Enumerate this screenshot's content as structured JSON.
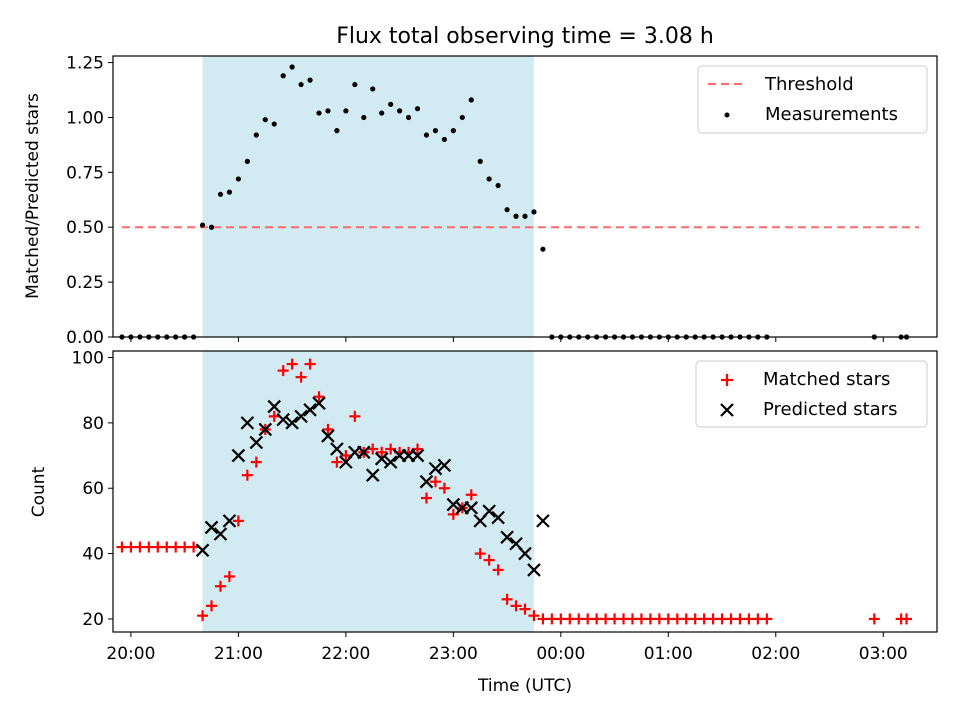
{
  "chart_data": {
    "type": "scatter",
    "title": "Flux total observing time = 3.08 h",
    "xlabel": "Time (UTC)",
    "x_ticks": [
      "20:00",
      "21:00",
      "22:00",
      "23:00",
      "00:00",
      "01:00",
      "02:00",
      "03:00"
    ],
    "x_range": [
      "19:50",
      "03:30"
    ],
    "shaded_interval": {
      "start": "20:40",
      "end": "23:45",
      "color": "#add8e6"
    },
    "panels": [
      {
        "ylabel": "Matched/Predicted stars",
        "ylim": [
          0,
          1.28
        ],
        "y_ticks": [
          "0.00",
          "0.25",
          "0.50",
          "0.75",
          "1.00",
          "1.25"
        ],
        "legend_position": "top-right",
        "series": [
          {
            "name": "Threshold",
            "kind": "dashed-line",
            "color": "#ff6b6b",
            "points": [
              [
                "19:55",
                0.5
              ],
              [
                "03:20",
                0.5
              ]
            ]
          },
          {
            "name": "Measurements",
            "kind": "dots",
            "color": "#000000",
            "points": [
              [
                "19:55",
                0.0
              ],
              [
                "20:00",
                0.0
              ],
              [
                "20:05",
                0.0
              ],
              [
                "20:10",
                0.0
              ],
              [
                "20:15",
                0.0
              ],
              [
                "20:20",
                0.0
              ],
              [
                "20:25",
                0.0
              ],
              [
                "20:30",
                0.0
              ],
              [
                "20:35",
                0.0
              ],
              [
                "20:40",
                0.51
              ],
              [
                "20:45",
                0.5
              ],
              [
                "20:50",
                0.65
              ],
              [
                "20:55",
                0.66
              ],
              [
                "21:00",
                0.72
              ],
              [
                "21:05",
                0.8
              ],
              [
                "21:10",
                0.92
              ],
              [
                "21:15",
                0.99
              ],
              [
                "21:20",
                0.97
              ],
              [
                "21:25",
                1.19
              ],
              [
                "21:30",
                1.23
              ],
              [
                "21:35",
                1.15
              ],
              [
                "21:40",
                1.17
              ],
              [
                "21:45",
                1.02
              ],
              [
                "21:50",
                1.03
              ],
              [
                "21:55",
                0.94
              ],
              [
                "22:00",
                1.03
              ],
              [
                "22:05",
                1.15
              ],
              [
                "22:10",
                1.0
              ],
              [
                "22:15",
                1.13
              ],
              [
                "22:20",
                1.02
              ],
              [
                "22:25",
                1.06
              ],
              [
                "22:30",
                1.03
              ],
              [
                "22:35",
                1.0
              ],
              [
                "22:40",
                1.04
              ],
              [
                "22:45",
                0.92
              ],
              [
                "22:50",
                0.94
              ],
              [
                "22:55",
                0.9
              ],
              [
                "23:00",
                0.94
              ],
              [
                "23:05",
                1.0
              ],
              [
                "23:10",
                1.08
              ],
              [
                "23:15",
                0.8
              ],
              [
                "23:20",
                0.72
              ],
              [
                "23:25",
                0.69
              ],
              [
                "23:30",
                0.58
              ],
              [
                "23:35",
                0.55
              ],
              [
                "23:40",
                0.55
              ],
              [
                "23:45",
                0.57
              ],
              [
                "23:50",
                0.4
              ],
              [
                "23:55",
                0.0
              ],
              [
                "00:00",
                0.0
              ],
              [
                "00:05",
                0.0
              ],
              [
                "00:10",
                0.0
              ],
              [
                "00:15",
                0.0
              ],
              [
                "00:20",
                0.0
              ],
              [
                "00:25",
                0.0
              ],
              [
                "00:30",
                0.0
              ],
              [
                "00:35",
                0.0
              ],
              [
                "00:40",
                0.0
              ],
              [
                "00:45",
                0.0
              ],
              [
                "00:50",
                0.0
              ],
              [
                "00:55",
                0.0
              ],
              [
                "01:00",
                0.0
              ],
              [
                "01:05",
                0.0
              ],
              [
                "01:10",
                0.0
              ],
              [
                "01:15",
                0.0
              ],
              [
                "01:20",
                0.0
              ],
              [
                "01:25",
                0.0
              ],
              [
                "01:30",
                0.0
              ],
              [
                "01:35",
                0.0
              ],
              [
                "01:40",
                0.0
              ],
              [
                "01:45",
                0.0
              ],
              [
                "01:50",
                0.0
              ],
              [
                "01:55",
                0.0
              ],
              [
                "02:55",
                0.0
              ],
              [
                "03:10",
                0.0
              ],
              [
                "03:13",
                0.0
              ]
            ]
          }
        ]
      },
      {
        "ylabel": "Count",
        "ylim": [
          16,
          102
        ],
        "y_ticks": [
          "20",
          "40",
          "60",
          "80",
          "100"
        ],
        "legend_position": "top-right",
        "series": [
          {
            "name": "Matched stars",
            "kind": "plus",
            "color": "#ff0000",
            "points": [
              [
                "19:55",
                42
              ],
              [
                "20:00",
                42
              ],
              [
                "20:05",
                42
              ],
              [
                "20:10",
                42
              ],
              [
                "20:15",
                42
              ],
              [
                "20:20",
                42
              ],
              [
                "20:25",
                42
              ],
              [
                "20:30",
                42
              ],
              [
                "20:35",
                42
              ],
              [
                "20:40",
                21
              ],
              [
                "20:45",
                24
              ],
              [
                "20:50",
                30
              ],
              [
                "20:55",
                33
              ],
              [
                "21:00",
                50
              ],
              [
                "21:05",
                64
              ],
              [
                "21:10",
                68
              ],
              [
                "21:15",
                78
              ],
              [
                "21:20",
                82
              ],
              [
                "21:25",
                96
              ],
              [
                "21:30",
                98
              ],
              [
                "21:35",
                94
              ],
              [
                "21:40",
                98
              ],
              [
                "21:45",
                88
              ],
              [
                "21:50",
                78
              ],
              [
                "21:55",
                68
              ],
              [
                "22:00",
                70
              ],
              [
                "22:05",
                82
              ],
              [
                "22:10",
                71
              ],
              [
                "22:15",
                72
              ],
              [
                "22:20",
                71
              ],
              [
                "22:25",
                72
              ],
              [
                "22:30",
                71
              ],
              [
                "22:35",
                71
              ],
              [
                "22:40",
                72
              ],
              [
                "22:45",
                57
              ],
              [
                "22:50",
                62
              ],
              [
                "22:55",
                60
              ],
              [
                "23:00",
                52
              ],
              [
                "23:05",
                54
              ],
              [
                "23:10",
                58
              ],
              [
                "23:15",
                40
              ],
              [
                "23:20",
                38
              ],
              [
                "23:25",
                35
              ],
              [
                "23:30",
                26
              ],
              [
                "23:35",
                24
              ],
              [
                "23:40",
                23
              ],
              [
                "23:45",
                21
              ],
              [
                "23:50",
                20
              ],
              [
                "23:55",
                20
              ],
              [
                "00:00",
                20
              ],
              [
                "00:05",
                20
              ],
              [
                "00:10",
                20
              ],
              [
                "00:15",
                20
              ],
              [
                "00:20",
                20
              ],
              [
                "00:25",
                20
              ],
              [
                "00:30",
                20
              ],
              [
                "00:35",
                20
              ],
              [
                "00:40",
                20
              ],
              [
                "00:45",
                20
              ],
              [
                "00:50",
                20
              ],
              [
                "00:55",
                20
              ],
              [
                "01:00",
                20
              ],
              [
                "01:05",
                20
              ],
              [
                "01:10",
                20
              ],
              [
                "01:15",
                20
              ],
              [
                "01:20",
                20
              ],
              [
                "01:25",
                20
              ],
              [
                "01:30",
                20
              ],
              [
                "01:35",
                20
              ],
              [
                "01:40",
                20
              ],
              [
                "01:45",
                20
              ],
              [
                "01:50",
                20
              ],
              [
                "01:55",
                20
              ],
              [
                "02:55",
                20
              ],
              [
                "03:10",
                20
              ],
              [
                "03:13",
                20
              ]
            ]
          },
          {
            "name": "Predicted stars",
            "kind": "x",
            "color": "#000000",
            "points": [
              [
                "20:40",
                41
              ],
              [
                "20:45",
                48
              ],
              [
                "20:50",
                46
              ],
              [
                "20:55",
                50
              ],
              [
                "21:00",
                70
              ],
              [
                "21:05",
                80
              ],
              [
                "21:10",
                74
              ],
              [
                "21:15",
                78
              ],
              [
                "21:20",
                85
              ],
              [
                "21:25",
                81
              ],
              [
                "21:30",
                80
              ],
              [
                "21:35",
                82
              ],
              [
                "21:40",
                84
              ],
              [
                "21:45",
                86
              ],
              [
                "21:50",
                76
              ],
              [
                "21:55",
                72
              ],
              [
                "22:00",
                68
              ],
              [
                "22:05",
                71
              ],
              [
                "22:10",
                71
              ],
              [
                "22:15",
                64
              ],
              [
                "22:20",
                69
              ],
              [
                "22:25",
                68
              ],
              [
                "22:30",
                70
              ],
              [
                "22:35",
                70
              ],
              [
                "22:40",
                70
              ],
              [
                "22:45",
                62
              ],
              [
                "22:50",
                66
              ],
              [
                "22:55",
                67
              ],
              [
                "23:00",
                55
              ],
              [
                "23:05",
                54
              ],
              [
                "23:10",
                54
              ],
              [
                "23:15",
                50
              ],
              [
                "23:20",
                53
              ],
              [
                "23:25",
                51
              ],
              [
                "23:30",
                45
              ],
              [
                "23:35",
                43
              ],
              [
                "23:40",
                40
              ],
              [
                "23:45",
                35
              ],
              [
                "23:50",
                50
              ]
            ]
          }
        ]
      }
    ]
  }
}
